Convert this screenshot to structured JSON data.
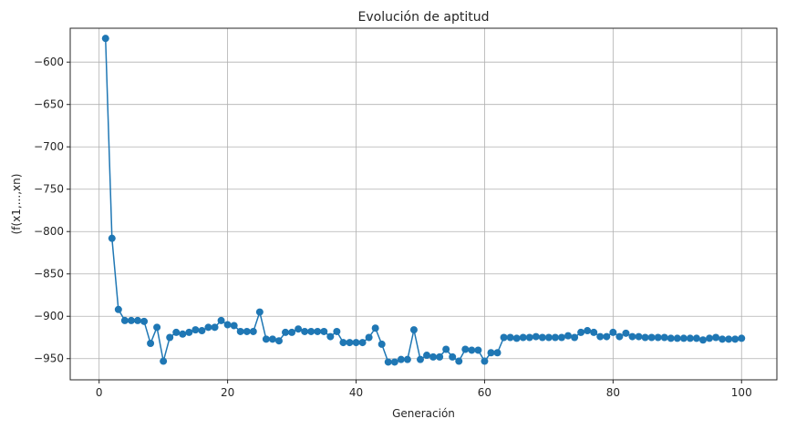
{
  "chart_data": {
    "type": "line",
    "title": "Evolución de aptitud",
    "xlabel": "Generación",
    "ylabel": "(f(x1,...,xn)",
    "xlim": [
      -4.5,
      105.5
    ],
    "ylim": [
      -975,
      -560
    ],
    "xticks": [
      0,
      20,
      40,
      60,
      80,
      100
    ],
    "yticks": [
      -950,
      -900,
      -850,
      -800,
      -750,
      -700,
      -650,
      -600
    ],
    "xtick_labels": [
      "0",
      "20",
      "40",
      "60",
      "80",
      "100"
    ],
    "ytick_labels": [
      "−950",
      "−900",
      "−850",
      "−800",
      "−750",
      "−700",
      "−650",
      "−600"
    ],
    "grid": true,
    "markers": true,
    "color": "#1f77b4",
    "x": [
      1,
      2,
      3,
      4,
      5,
      6,
      7,
      8,
      9,
      10,
      11,
      12,
      13,
      14,
      15,
      16,
      17,
      18,
      19,
      20,
      21,
      22,
      23,
      24,
      25,
      26,
      27,
      28,
      29,
      30,
      31,
      32,
      33,
      34,
      35,
      36,
      37,
      38,
      39,
      40,
      41,
      42,
      43,
      44,
      45,
      46,
      47,
      48,
      49,
      50,
      51,
      52,
      53,
      54,
      55,
      56,
      57,
      58,
      59,
      60,
      61,
      62,
      63,
      64,
      65,
      66,
      67,
      68,
      69,
      70,
      71,
      72,
      73,
      74,
      75,
      76,
      77,
      78,
      79,
      80,
      81,
      82,
      83,
      84,
      85,
      86,
      87,
      88,
      89,
      90,
      91,
      92,
      93,
      94,
      95,
      96,
      97,
      98,
      99,
      100
    ],
    "y": [
      -572,
      -808,
      -892,
      -905,
      -905,
      -905,
      -906,
      -932,
      -913,
      -953,
      -925,
      -919,
      -921,
      -919,
      -916,
      -917,
      -913,
      -913,
      -905,
      -910,
      -911,
      -918,
      -918,
      -918,
      -895,
      -927,
      -927,
      -929,
      -919,
      -919,
      -915,
      -918,
      -918,
      -918,
      -918,
      -924,
      -918,
      -931,
      -931,
      -931,
      -931,
      -925,
      -914,
      -933,
      -954,
      -954,
      -951,
      -951,
      -916,
      -951,
      -946,
      -948,
      -948,
      -939,
      -948,
      -953,
      -939,
      -940,
      -940,
      -953,
      -943,
      -943,
      -925,
      -925,
      -926,
      -925,
      -925,
      -924,
      -925,
      -925,
      -925,
      -925,
      -923,
      -925,
      -919,
      -917,
      -919,
      -924,
      -924,
      -919,
      -924,
      -920,
      -924,
      -924,
      -925,
      -925,
      -925,
      -925,
      -926,
      -926,
      -926,
      -926,
      -926,
      -928,
      -926,
      -925,
      -927,
      -927,
      -927,
      -926
    ]
  }
}
